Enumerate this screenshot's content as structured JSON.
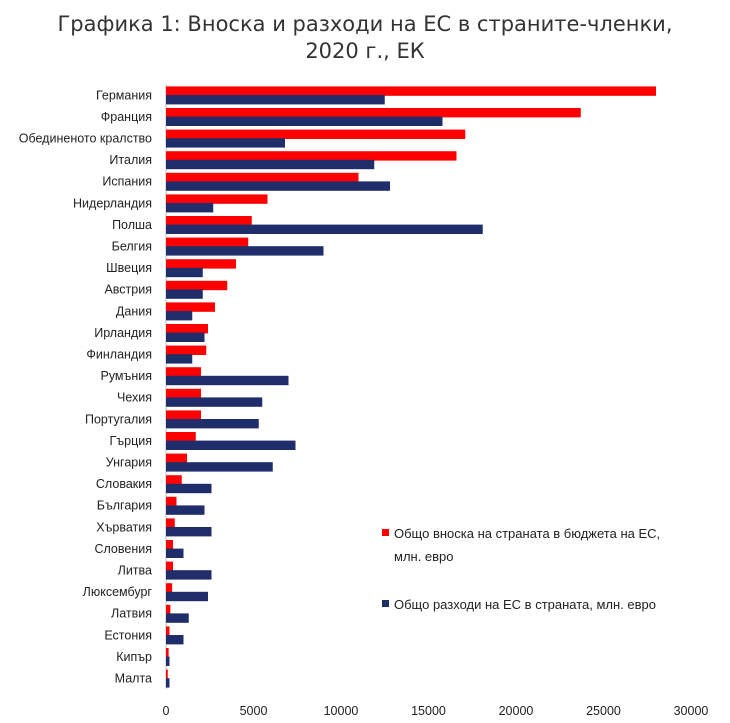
{
  "chart_data": {
    "type": "bar",
    "orientation": "horizontal",
    "title_lines": [
      "Графика 1: Вноска и разходи на ЕС в страните-членки,",
      "2020 г., ЕК"
    ],
    "categories": [
      "Германия",
      "Франция",
      "Обединеното кралство",
      "Италия",
      "Испания",
      "Нидерландия",
      "Полша",
      "Белгия",
      "Швеция",
      "Австрия",
      "Дания",
      "Ирландия",
      "Финландия",
      "Румъния",
      "Чехия",
      "Португалия",
      "Гърция",
      "Унгария",
      "Словакия",
      "България",
      "Хърватия",
      "Словения",
      "Литва",
      "Люксембург",
      "Латвия",
      "Естония",
      "Кипър",
      "Малта"
    ],
    "series": [
      {
        "name": "Общо вноска на страната в бюджета на ЕС, млн. евро",
        "color": "#ff0000",
        "values": [
          28000,
          23700,
          17100,
          16600,
          11000,
          5800,
          4900,
          4700,
          4000,
          3500,
          2800,
          2400,
          2300,
          2000,
          2000,
          2000,
          1700,
          1200,
          900,
          600,
          500,
          400,
          400,
          350,
          250,
          200,
          150,
          100
        ]
      },
      {
        "name": "Общо разходи на ЕС в страната, млн. евро",
        "color": "#1f2d6b",
        "values": [
          12500,
          15800,
          6800,
          11900,
          12800,
          2700,
          18100,
          9000,
          2100,
          2100,
          1500,
          2200,
          1500,
          7000,
          5500,
          5300,
          7400,
          6100,
          2600,
          2200,
          2600,
          1000,
          2600,
          2400,
          1300,
          1000,
          200,
          200
        ]
      }
    ],
    "xlim": [
      0,
      30000
    ],
    "x_ticks": [
      0,
      5000,
      10000,
      15000,
      20000,
      25000,
      30000
    ],
    "grid": false,
    "legend": {
      "placement": "lower-right",
      "entries": [
        [
          "Общо вноска на страната в бюджета на ЕС,",
          "млн. евро"
        ],
        [
          "Общо разходи на ЕС в страната, млн. евро"
        ]
      ]
    }
  }
}
